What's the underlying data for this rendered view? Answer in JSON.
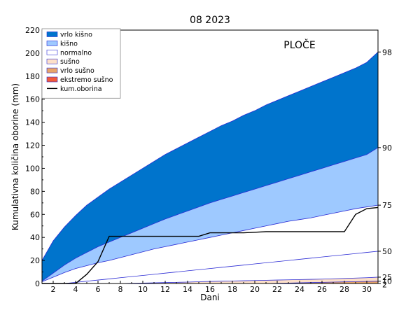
{
  "chart_data": {
    "type": "area",
    "title": "08 2023",
    "xlabel": "Dani",
    "ylabel": "Kumulativna količina oborine (mm)",
    "station": "PLOČE",
    "xlim": [
      1,
      31
    ],
    "ylim": [
      0,
      220
    ],
    "x_ticks": [
      2,
      4,
      6,
      8,
      10,
      12,
      14,
      16,
      18,
      20,
      22,
      24,
      26,
      28,
      30
    ],
    "y_ticks": [
      0,
      20,
      40,
      60,
      80,
      100,
      120,
      140,
      160,
      180,
      200,
      220
    ],
    "days": [
      1,
      2,
      3,
      4,
      5,
      6,
      7,
      8,
      9,
      10,
      11,
      12,
      13,
      14,
      15,
      16,
      17,
      18,
      19,
      20,
      21,
      22,
      23,
      24,
      25,
      26,
      27,
      28,
      29,
      30,
      31
    ],
    "percentile_curves": [
      {
        "label": "2",
        "values": [
          0,
          0,
          0,
          0,
          0,
          0,
          0,
          0,
          0,
          0,
          0,
          0,
          0,
          0,
          0,
          0,
          0,
          0,
          0,
          0,
          0,
          0,
          0,
          0,
          0,
          0,
          0,
          0,
          0,
          0,
          0
        ]
      },
      {
        "label": "10",
        "values": [
          0,
          0,
          0,
          0,
          0,
          0,
          0,
          0,
          0,
          0,
          0,
          0,
          0,
          0,
          0,
          0,
          0,
          0,
          0,
          0,
          0,
          0.2,
          0.4,
          0.6,
          0.8,
          1.0,
          1.2,
          1.4,
          1.6,
          1.8,
          2.0
        ]
      },
      {
        "label": "25",
        "values": [
          0,
          0,
          0,
          0,
          0,
          0,
          0,
          0,
          0.2,
          0.4,
          0.6,
          0.8,
          1.0,
          1.2,
          1.5,
          1.8,
          2.0,
          2.2,
          2.4,
          2.6,
          2.8,
          3.0,
          3.2,
          3.4,
          3.6,
          3.8,
          4.1,
          4.4,
          4.7,
          5.0,
          5.5
        ]
      },
      {
        "label": "50",
        "values": [
          0,
          0,
          0,
          1.0,
          2.0,
          3.0,
          4.0,
          5.0,
          6.0,
          7.0,
          8.0,
          9.0,
          10.0,
          11.0,
          12.0,
          13.0,
          14.0,
          15.0,
          16.0,
          17.0,
          18.0,
          19.0,
          20.0,
          21.0,
          22.0,
          23.0,
          24.0,
          25.0,
          26.0,
          27.0,
          28.0
        ]
      },
      {
        "label": "75",
        "values": [
          1.5,
          5.5,
          9.5,
          13.0,
          15.5,
          18.0,
          20.0,
          22.5,
          25.0,
          27.5,
          30.0,
          32.0,
          34.0,
          36.0,
          38.0,
          40.0,
          42.0,
          44.0,
          46.0,
          48.0,
          50.0,
          52.0,
          54.0,
          55.5,
          57.0,
          59.0,
          61.0,
          63.0,
          65.0,
          66.5,
          68.0
        ]
      },
      {
        "label": "90",
        "values": [
          2.0,
          9.0,
          16.0,
          22.0,
          27.0,
          32.0,
          36.0,
          40.0,
          44.0,
          48.0,
          52.0,
          56.0,
          59.5,
          63.0,
          66.5,
          70.0,
          73.0,
          76.0,
          79.0,
          82.0,
          85.0,
          88.0,
          91.0,
          94.0,
          97.0,
          100.0,
          103.0,
          106.0,
          109.0,
          112.0,
          118.0
        ]
      },
      {
        "label": "98",
        "values": [
          20.0,
          37.0,
          49.0,
          59.0,
          68.0,
          75.0,
          82.0,
          88.0,
          94.0,
          100.0,
          106.0,
          112.0,
          117.0,
          122.0,
          127.0,
          132.0,
          137.0,
          141.0,
          146.0,
          150.0,
          155.0,
          159.0,
          163.0,
          167.0,
          171.0,
          175.0,
          179.0,
          183.0,
          187.0,
          192.0,
          201.0
        ]
      }
    ],
    "right_axis_labels": [
      "98",
      "90",
      "75",
      "50",
      "25",
      "10",
      "2"
    ],
    "bands": [
      {
        "name": "vrlo kišno",
        "lower": "90",
        "upper": "98",
        "color": "#0074cc"
      },
      {
        "name": "kišno",
        "lower": "75",
        "upper": "90",
        "color": "#9ec9ff"
      },
      {
        "name": "normalno",
        "lower": "25",
        "upper": "75",
        "color": "#ffffff"
      },
      {
        "name": "sušno",
        "lower": "10",
        "upper": "25",
        "color": "#fde0c8"
      },
      {
        "name": "vrlo sušno",
        "lower": "2",
        "upper": "10",
        "color": "#e8a468"
      },
      {
        "name": "ekstremo sušno",
        "lower": null,
        "upper": "2",
        "color": "#f25a3a"
      }
    ],
    "series": [
      {
        "name": "kum.oborina",
        "color": "#000000",
        "x": [
          1,
          2,
          3,
          4,
          5,
          6,
          7,
          8,
          9,
          10,
          11,
          12,
          13,
          14,
          15,
          16,
          17,
          18,
          19,
          20,
          21,
          22,
          23,
          24,
          25,
          26,
          27,
          28,
          29,
          30,
          31
        ],
        "values": [
          0,
          0,
          0,
          0,
          8,
          19,
          41,
          41,
          41,
          41,
          41,
          41,
          41,
          41,
          41,
          44,
          44,
          44,
          44,
          44.5,
          45,
          45,
          45,
          45,
          45,
          45,
          45,
          45,
          60,
          65,
          66
        ]
      }
    ],
    "legend": {
      "position": "top-left",
      "items": [
        "vrlo kišno",
        "kišno",
        "normalno",
        "sušno",
        "vrlo sušno",
        "ekstremo sušno",
        "kum.oborina"
      ]
    },
    "grid": false
  }
}
